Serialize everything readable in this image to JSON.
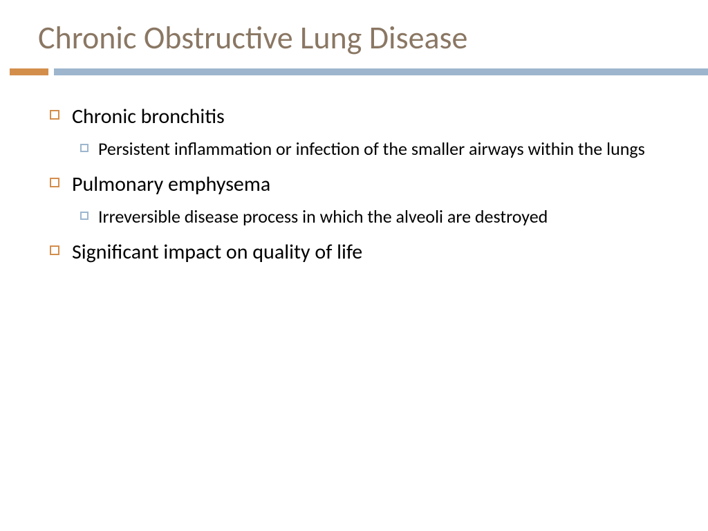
{
  "slide": {
    "title": "Chronic Obstructive Lung Disease",
    "title_color": "#8a7763",
    "divider_orange": "#d38e4c",
    "divider_blue": "#9db6ce",
    "bullet_l1_marker_color": "#d38e4c",
    "bullet_l2_marker_color": "#9db6ce",
    "bullets": [
      {
        "text": "Chronic bronchitis",
        "sub": [
          "Persistent inflammation or infection of the smaller airways within the lungs"
        ]
      },
      {
        "text": "Pulmonary emphysema",
        "sub": [
          "Irreversible disease process in which the alveoli are destroyed"
        ]
      },
      {
        "text": "Significant impact on quality of life",
        "sub": []
      }
    ]
  }
}
